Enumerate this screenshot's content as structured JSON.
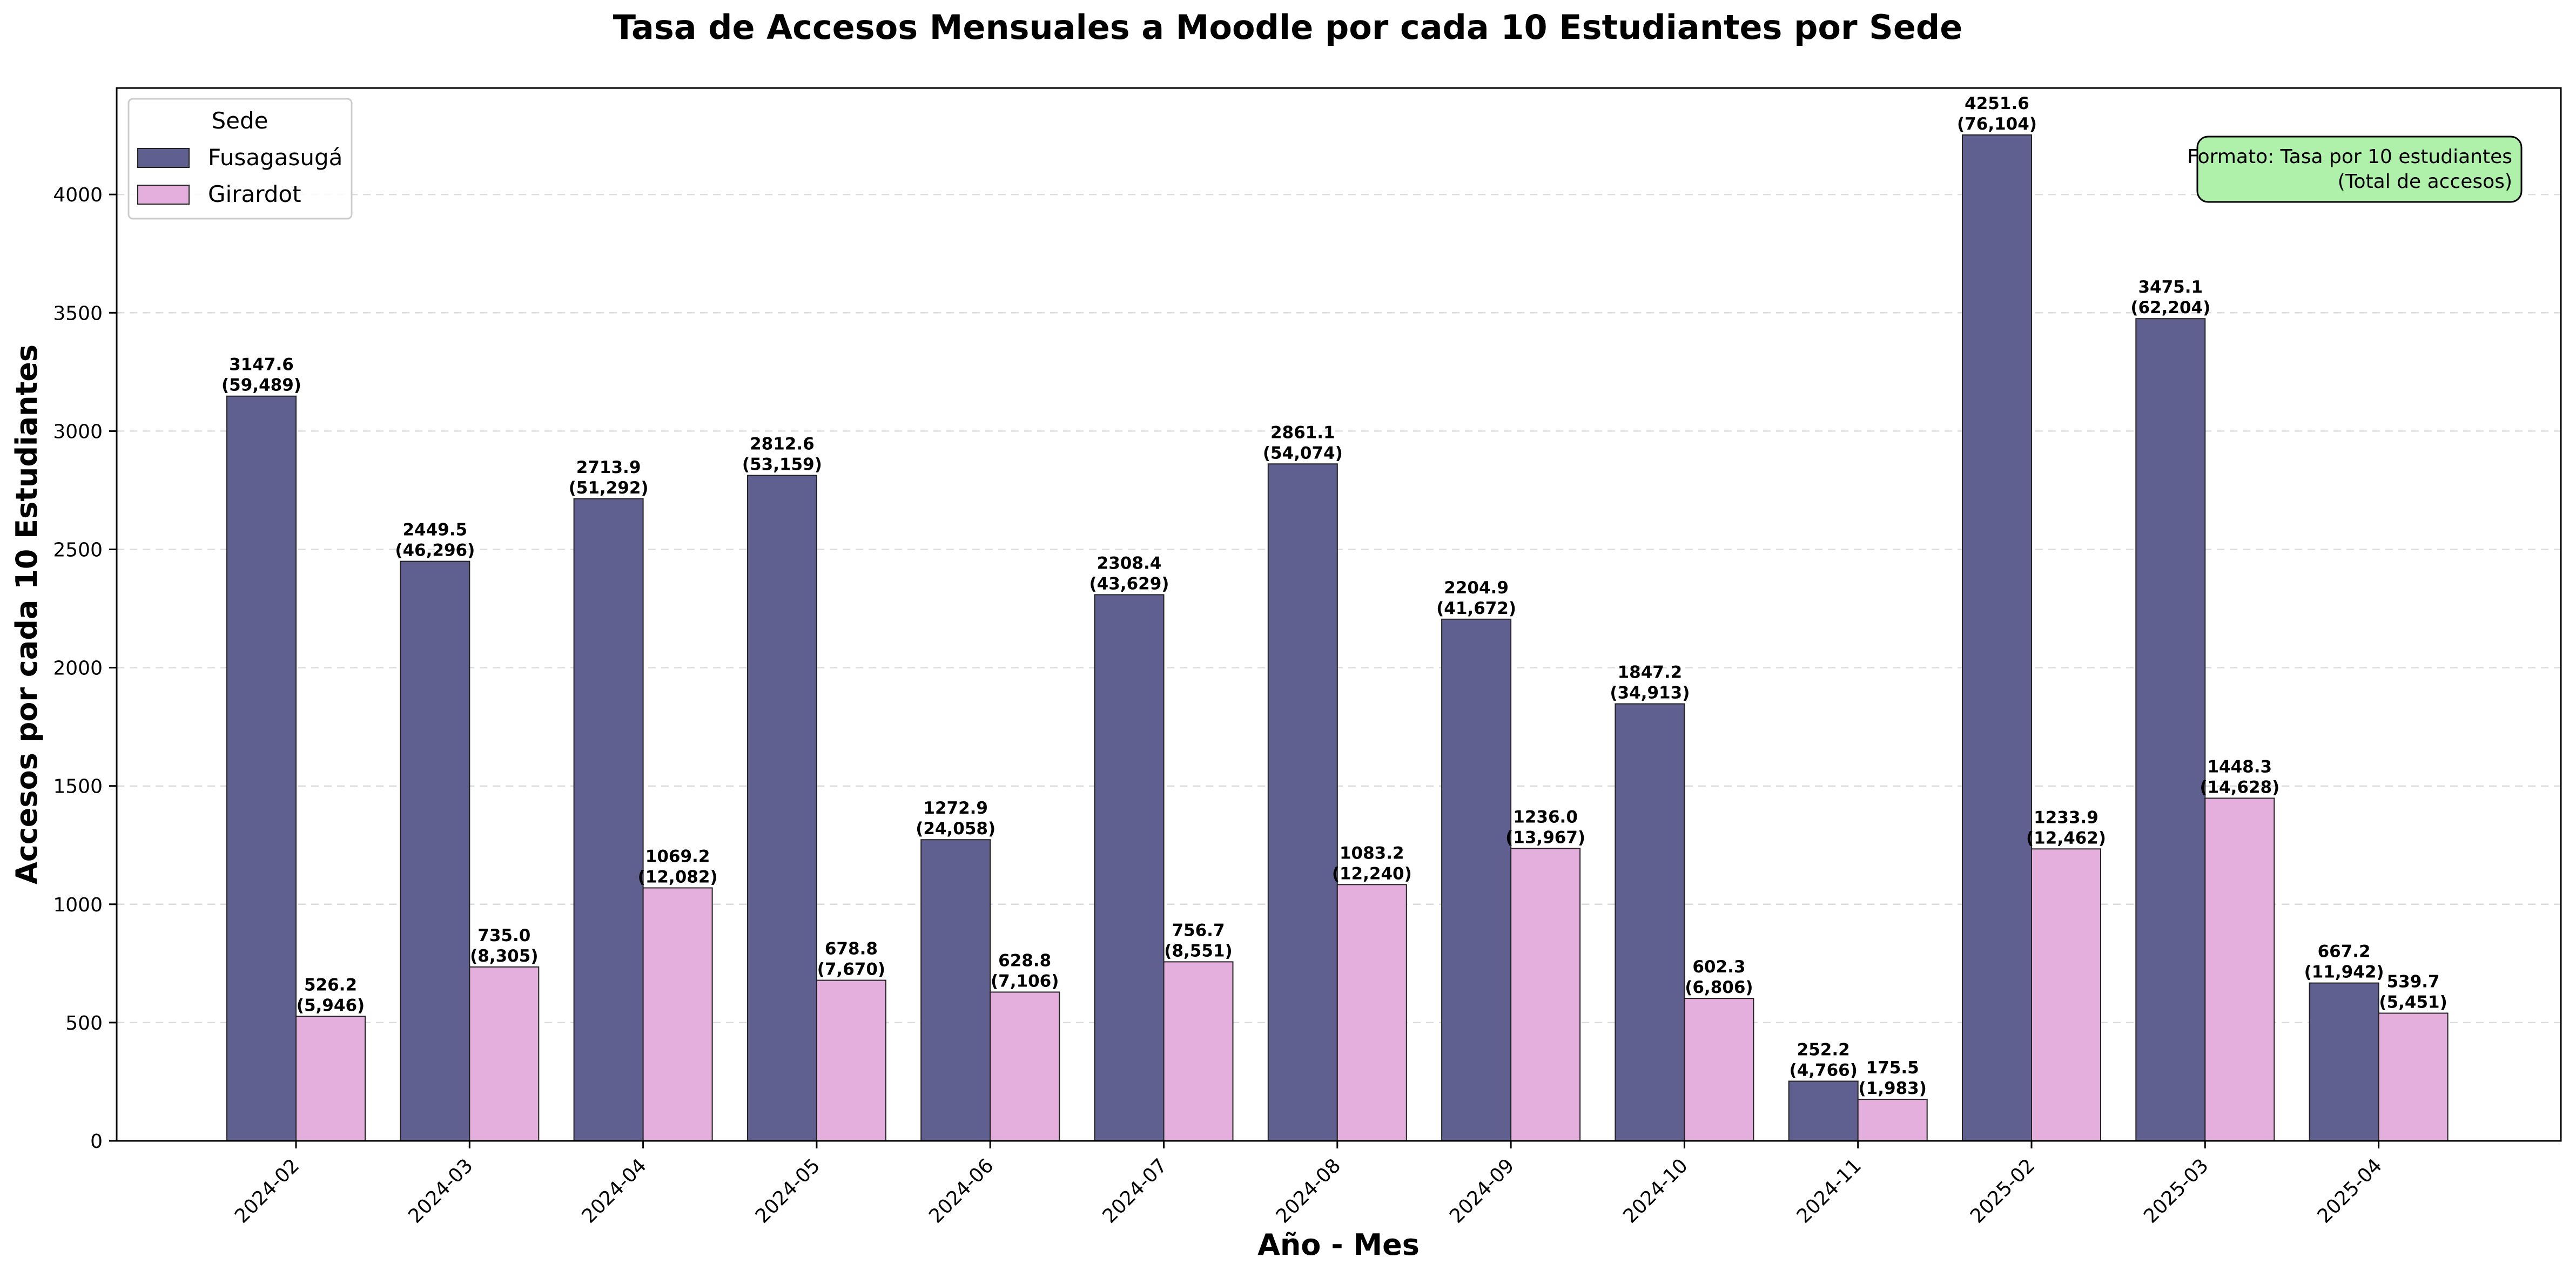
{
  "chart_data": {
    "type": "bar",
    "title": "Tasa de Accesos Mensuales a Moodle por cada 10 Estudiantes por Sede",
    "xlabel": "Año - Mes",
    "ylabel": "Accesos por cada 10 Estudiantes",
    "ylim": [
      0,
      4450
    ],
    "yticks": [
      0,
      500,
      1000,
      1500,
      2000,
      2500,
      3000,
      3500,
      4000
    ],
    "grid": "horizontal dashed",
    "legend": {
      "title": "Sede",
      "placement": "top-left"
    },
    "categories": [
      "2024-02",
      "2024-03",
      "2024-04",
      "2024-05",
      "2024-06",
      "2024-07",
      "2024-08",
      "2024-09",
      "2024-10",
      "2024-11",
      "2025-02",
      "2025-03",
      "2025-04"
    ],
    "series": [
      {
        "name": "Fusagasugá",
        "color": "#5f5f90",
        "values": [
          3147.6,
          2449.5,
          2713.9,
          2812.6,
          1272.9,
          2308.4,
          2861.1,
          2204.9,
          1847.2,
          252.2,
          4251.6,
          3475.1,
          667.2
        ],
        "totals": [
          "(59,489)",
          "(46,296)",
          "(51,292)",
          "(53,159)",
          "(24,058)",
          "(43,629)",
          "(54,074)",
          "(41,672)",
          "(34,913)",
          "(4,766)",
          "(76,104)",
          "(62,204)",
          "(11,942)"
        ]
      },
      {
        "name": "Girardot",
        "color": "#e4afdc",
        "values": [
          526.2,
          735.0,
          1069.2,
          678.8,
          628.8,
          756.7,
          1083.2,
          1236.0,
          602.3,
          175.5,
          1233.9,
          1448.3,
          539.7
        ],
        "totals": [
          "(5,946)",
          "(8,305)",
          "(12,082)",
          "(7,670)",
          "(7,106)",
          "(8,551)",
          "(12,240)",
          "(13,967)",
          "(6,806)",
          "(1,983)",
          "(12,462)",
          "(14,628)",
          "(5,451)"
        ]
      }
    ],
    "annotation": {
      "lines": [
        "Formato: Tasa por 10 estudiantes",
        "(Total de accesos)"
      ],
      "placement": "top-right",
      "background": "#aff0aa"
    }
  }
}
